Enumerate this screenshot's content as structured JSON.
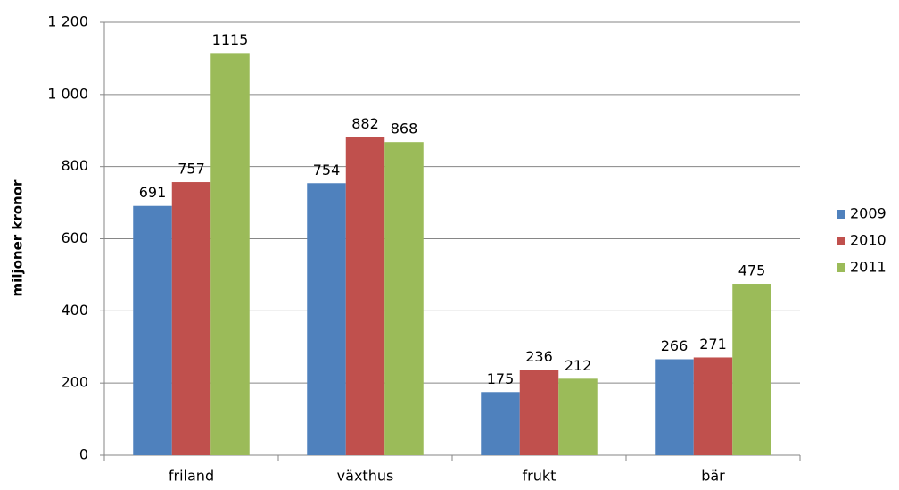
{
  "chart_data": {
    "type": "bar",
    "y_label": "miljoner kronor",
    "categories": [
      "friland",
      "växthus",
      "frukt",
      "bär"
    ],
    "series": [
      {
        "name": "2009",
        "color": "#4f81bd",
        "values": [
          691,
          754,
          175,
          266
        ]
      },
      {
        "name": "2010",
        "color": "#c0504d",
        "values": [
          757,
          882,
          236,
          271
        ]
      },
      {
        "name": "2011",
        "color": "#9bbb59",
        "values": [
          1115,
          868,
          212,
          475
        ]
      }
    ],
    "ylim": [
      0,
      1200
    ],
    "yticks": [
      0,
      200,
      400,
      600,
      800,
      {
        "value": 1000,
        "label": "1 000"
      },
      {
        "value": 1200,
        "label": "1 200"
      }
    ],
    "grid": true,
    "legend": "right"
  }
}
